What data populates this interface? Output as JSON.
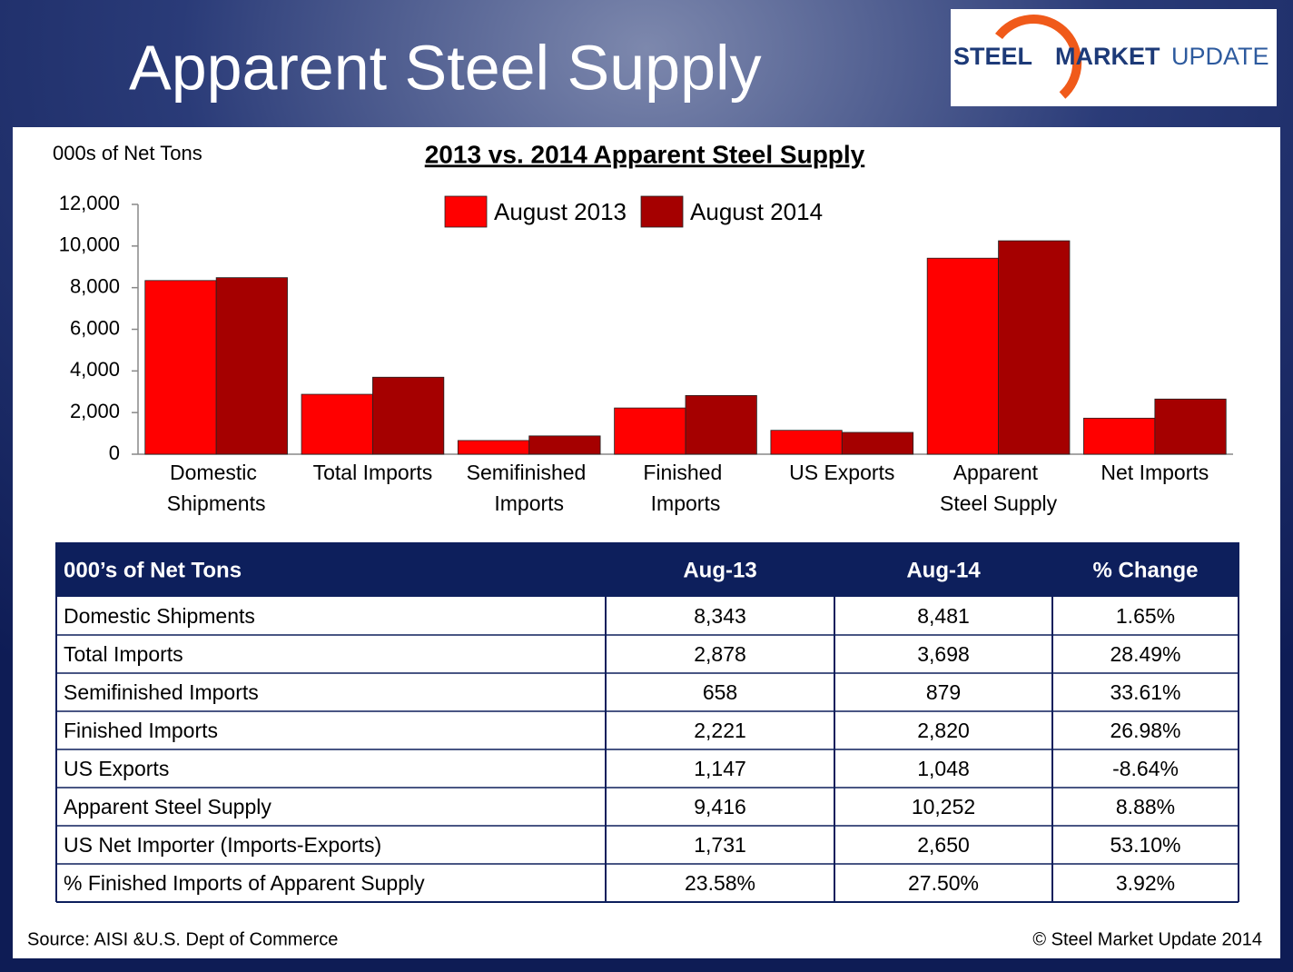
{
  "header": {
    "title": "Apparent Steel Supply",
    "logo": [
      "STEEL",
      "MARKET",
      "UPDATE"
    ]
  },
  "chart_data": {
    "type": "bar",
    "title": "2013 vs. 2014 Apparent Steel Supply",
    "y_label": "000s of Net Tons",
    "categories": [
      "Domestic Shipments",
      "Total Imports",
      "Semifinished Imports",
      "Finished Imports",
      "US Exports",
      "Apparent Steel Supply",
      "Net Imports"
    ],
    "series": [
      {
        "name": "August 2013",
        "color": "#ff0000",
        "values": [
          8343,
          2878,
          658,
          2221,
          1147,
          9416,
          1731
        ]
      },
      {
        "name": "August 2014",
        "color": "#a50000",
        "values": [
          8481,
          3698,
          879,
          2820,
          1048,
          10252,
          2650
        ]
      }
    ],
    "ylim": [
      0,
      12000
    ],
    "yticks": [
      0,
      {
        "value": 2000,
        "label": "2,000"
      },
      {
        "value": 4000,
        "label": "4,000"
      },
      {
        "value": 6000,
        "label": "6,000"
      },
      {
        "value": 8000,
        "label": "8,000"
      },
      {
        "value": 10000,
        "label": "10,000"
      },
      {
        "value": 12000,
        "label": "12,000"
      }
    ],
    "grid": false,
    "legend": "top"
  },
  "table": {
    "columns": [
      "000’s of Net Tons",
      "Aug-13",
      "Aug-14",
      "% Change"
    ],
    "rows": [
      [
        "Domestic Shipments",
        "8,343",
        "8,481",
        "1.65%"
      ],
      [
        "Total Imports",
        "2,878",
        "3,698",
        "28.49%"
      ],
      [
        "Semifinished Imports",
        "658",
        "879",
        "33.61%"
      ],
      [
        "Finished Imports",
        "2,221",
        "2,820",
        "26.98%"
      ],
      [
        "US Exports",
        "1,147",
        "1,048",
        "-8.64%"
      ],
      [
        "Apparent Steel Supply",
        "9,416",
        "10,252",
        "8.88%"
      ],
      [
        "US Net Importer (Imports-Exports)",
        "1,731",
        "2,650",
        "53.10%"
      ],
      [
        "% Finished Imports of Apparent Supply",
        "23.58%",
        "27.50%",
        "3.92%"
      ]
    ]
  },
  "footer": {
    "source": "Source:  AISI &U.S. Dept of Commerce",
    "copyright": "©   Steel Market Update 2014"
  }
}
